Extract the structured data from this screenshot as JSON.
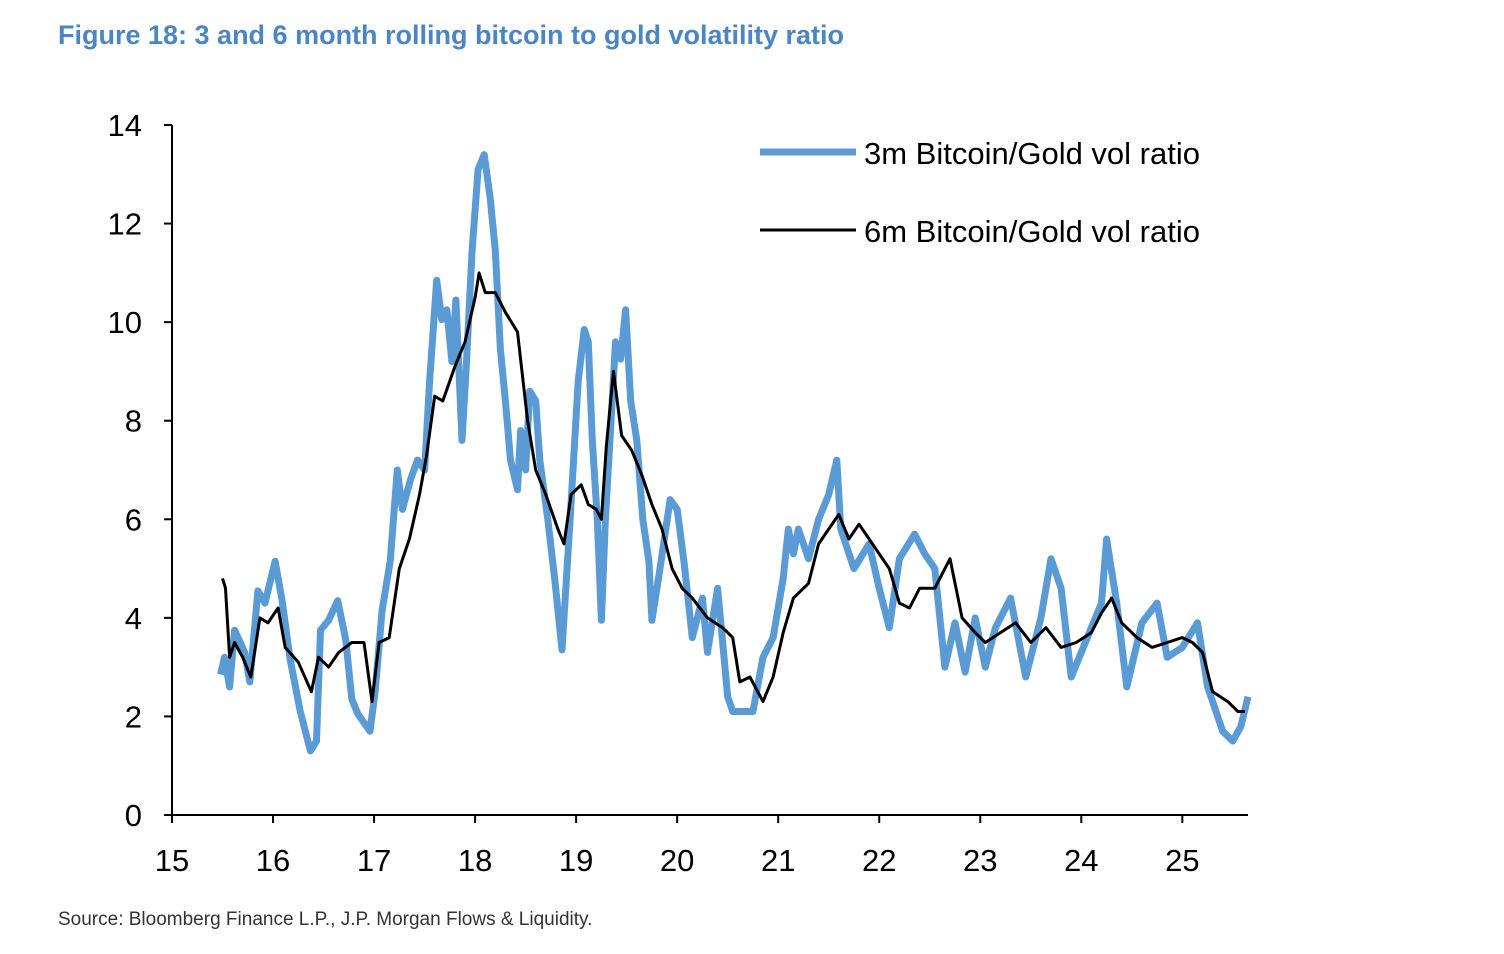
{
  "title": "Figure 18: 3 and 6 month rolling bitcoin to gold volatility ratio",
  "source": "Source: Bloomberg Finance L.P., J.P. Morgan Flows & Liquidity.",
  "chart_data": {
    "type": "line",
    "title": "Figure 18: 3 and 6 month rolling bitcoin to gold volatility ratio",
    "xlabel": "",
    "ylabel": "",
    "xlim": [
      15,
      25.65
    ],
    "ylim": [
      0,
      14
    ],
    "x_ticks": [
      "15",
      "16",
      "17",
      "18",
      "19",
      "20",
      "21",
      "22",
      "23",
      "24",
      "25"
    ],
    "y_ticks": [
      "0",
      "2",
      "4",
      "6",
      "8",
      "10",
      "12",
      "14"
    ],
    "grid": false,
    "legend_position": "top-right",
    "series": [
      {
        "name": "3m Bitcoin/Gold vol ratio",
        "color": "#5b9bd5",
        "x": [
          15.48,
          15.52,
          15.57,
          15.62,
          15.72,
          15.77,
          15.85,
          15.92,
          16.02,
          16.09,
          16.17,
          16.27,
          16.37,
          16.43,
          16.47,
          16.55,
          16.64,
          16.72,
          16.78,
          16.84,
          16.96,
          17.01,
          17.08,
          17.16,
          17.23,
          17.28,
          17.36,
          17.43,
          17.5,
          17.55,
          17.62,
          17.67,
          17.72,
          17.77,
          17.81,
          17.87,
          17.91,
          17.97,
          18.03,
          18.09,
          18.15,
          18.2,
          18.25,
          18.3,
          18.35,
          18.42,
          18.45,
          18.5,
          18.54,
          18.6,
          18.64,
          18.72,
          18.79,
          18.86,
          18.94,
          19.02,
          19.08,
          19.12,
          19.16,
          19.21,
          19.25,
          19.29,
          19.34,
          19.39,
          19.44,
          19.49,
          19.54,
          19.6,
          19.66,
          19.72,
          19.75,
          19.83,
          19.93,
          20.0,
          20.07,
          20.15,
          20.25,
          20.3,
          20.4,
          20.5,
          20.55,
          20.75,
          20.85,
          20.95,
          21.05,
          21.1,
          21.15,
          21.2,
          21.3,
          21.4,
          21.5,
          21.58,
          21.62,
          21.75,
          21.9,
          22.0,
          22.1,
          22.2,
          22.35,
          22.45,
          22.55,
          22.65,
          22.75,
          22.85,
          22.95,
          23.05,
          23.15,
          23.3,
          23.45,
          23.6,
          23.7,
          23.8,
          23.9,
          24.1,
          24.2,
          24.25,
          24.35,
          24.45,
          24.6,
          24.75,
          24.85,
          25.0,
          25.15,
          25.25,
          25.4,
          25.5,
          25.58,
          25.65
        ],
        "y": [
          2.85,
          3.2,
          2.6,
          3.75,
          3.3,
          2.7,
          4.55,
          4.3,
          5.15,
          4.35,
          3.15,
          2.1,
          1.3,
          1.5,
          3.75,
          3.95,
          4.35,
          3.55,
          2.35,
          2.05,
          1.7,
          2.5,
          4.15,
          5.15,
          7.0,
          6.2,
          6.8,
          7.2,
          7.0,
          8.8,
          10.85,
          10.05,
          10.25,
          9.2,
          10.45,
          7.6,
          9.0,
          11.45,
          13.1,
          13.4,
          12.5,
          11.45,
          9.45,
          8.4,
          7.2,
          6.6,
          7.8,
          7.0,
          8.6,
          8.4,
          7.2,
          6.0,
          4.75,
          3.35,
          6.0,
          8.8,
          9.85,
          9.6,
          7.6,
          6.0,
          3.95,
          6.0,
          7.8,
          9.6,
          9.25,
          10.25,
          8.4,
          7.6,
          6.0,
          5.15,
          3.95,
          5.0,
          6.4,
          6.2,
          5.1,
          3.6,
          4.4,
          3.3,
          4.6,
          2.4,
          2.1,
          2.1,
          3.2,
          3.6,
          4.8,
          5.8,
          5.3,
          5.8,
          5.2,
          6.0,
          6.5,
          7.2,
          5.8,
          5.0,
          5.5,
          4.6,
          3.8,
          5.2,
          5.7,
          5.3,
          5.0,
          3.0,
          3.9,
          2.9,
          4.0,
          3.0,
          3.8,
          4.4,
          2.8,
          4.0,
          5.2,
          4.6,
          2.8,
          3.8,
          4.3,
          5.6,
          4.3,
          2.6,
          3.9,
          4.3,
          3.2,
          3.4,
          3.9,
          2.6,
          1.7,
          1.5,
          1.8,
          2.4
        ]
      },
      {
        "name": "6m Bitcoin/Gold vol ratio",
        "color": "#000000",
        "x": [
          15.5,
          15.53,
          15.57,
          15.62,
          15.7,
          15.78,
          15.87,
          15.95,
          16.05,
          16.12,
          16.25,
          16.38,
          16.45,
          16.55,
          16.65,
          16.78,
          16.9,
          16.98,
          17.05,
          17.15,
          17.25,
          17.35,
          17.45,
          17.52,
          17.6,
          17.68,
          17.8,
          17.9,
          18.0,
          18.04,
          18.1,
          18.2,
          18.3,
          18.42,
          18.52,
          18.6,
          18.7,
          18.82,
          18.88,
          18.95,
          19.05,
          19.12,
          19.2,
          19.25,
          19.3,
          19.37,
          19.45,
          19.55,
          19.65,
          19.75,
          19.85,
          19.95,
          20.05,
          20.15,
          20.3,
          20.45,
          20.55,
          20.62,
          20.72,
          20.85,
          20.95,
          21.05,
          21.15,
          21.3,
          21.4,
          21.5,
          21.6,
          21.7,
          21.8,
          21.9,
          22.0,
          22.1,
          22.2,
          22.3,
          22.4,
          22.55,
          22.7,
          22.82,
          22.95,
          23.05,
          23.2,
          23.35,
          23.5,
          23.65,
          23.8,
          23.95,
          24.1,
          24.2,
          24.3,
          24.4,
          24.55,
          24.7,
          24.85,
          25.0,
          25.1,
          25.2,
          25.3,
          25.45,
          25.55,
          25.62
        ],
        "y": [
          4.8,
          4.6,
          3.2,
          3.5,
          3.2,
          2.8,
          4.0,
          3.9,
          4.2,
          3.4,
          3.1,
          2.5,
          3.2,
          3.0,
          3.3,
          3.5,
          3.5,
          2.3,
          3.5,
          3.6,
          5.0,
          5.6,
          6.5,
          7.3,
          8.5,
          8.4,
          9.1,
          9.6,
          10.5,
          11.0,
          10.6,
          10.6,
          10.2,
          9.8,
          8.0,
          7.0,
          6.5,
          5.8,
          5.5,
          6.5,
          6.7,
          6.3,
          6.2,
          6.0,
          7.5,
          9.0,
          7.7,
          7.4,
          6.9,
          6.3,
          5.8,
          5.0,
          4.6,
          4.4,
          4.0,
          3.8,
          3.6,
          2.7,
          2.8,
          2.3,
          2.8,
          3.7,
          4.4,
          4.7,
          5.5,
          5.8,
          6.1,
          5.6,
          5.9,
          5.6,
          5.3,
          5.0,
          4.3,
          4.2,
          4.6,
          4.6,
          5.2,
          4.0,
          3.7,
          3.5,
          3.7,
          3.9,
          3.5,
          3.8,
          3.4,
          3.5,
          3.7,
          4.1,
          4.4,
          3.9,
          3.6,
          3.4,
          3.5,
          3.6,
          3.5,
          3.3,
          2.5,
          2.3,
          2.1,
          2.1
        ]
      }
    ]
  }
}
